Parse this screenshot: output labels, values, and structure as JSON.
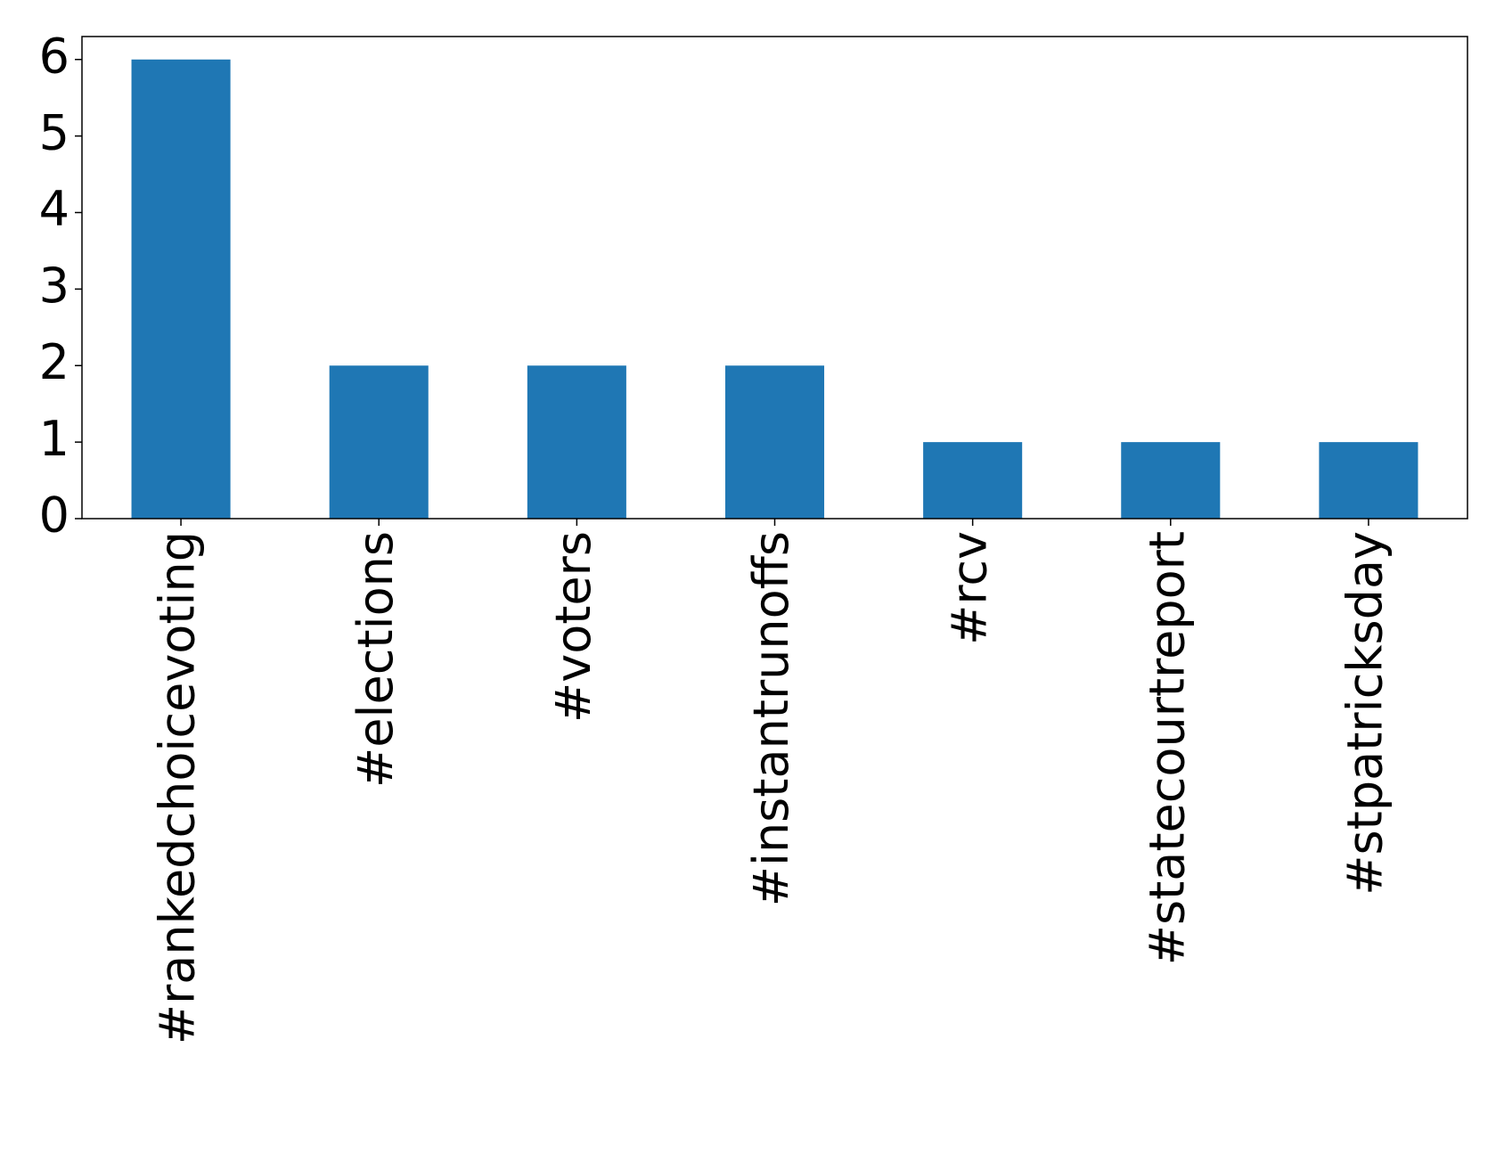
{
  "chart_data": {
    "type": "bar",
    "categories": [
      "#rankedchoicevoting",
      "#elections",
      "#voters",
      "#instantrunoffs",
      "#rcv",
      "#statecourtreport",
      "#stpatricksday"
    ],
    "values": [
      6,
      2,
      2,
      2,
      1,
      1,
      1
    ],
    "color": "#1f77b4",
    "ylim": [
      0,
      6.3
    ],
    "yticks": [
      0,
      1,
      2,
      3,
      4,
      5,
      6
    ],
    "grid": false
  }
}
